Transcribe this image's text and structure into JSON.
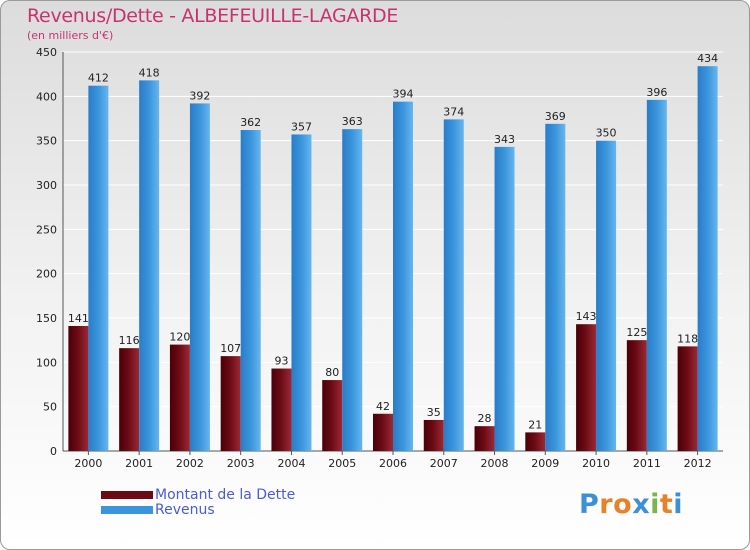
{
  "title": "Revenus/Dette - ALBEFEUILLE-LAGARDE",
  "subtitle": "(en milliers d'€)",
  "logo": {
    "letters": [
      "P",
      "r",
      "o",
      "x",
      "i",
      "t",
      "i"
    ],
    "letter_colors": [
      "#3d8fd6",
      "#e8822a",
      "#e8822a",
      "#3d8fd6",
      "#7ab648",
      "#e8822a",
      "#3d8fd6"
    ]
  },
  "colors": {
    "dette": "#6b0a14",
    "revenus": "#3a95dc",
    "grid": "#ffffff",
    "axis_text": "#222222",
    "title": "#c8336e",
    "legend_text": "#4a5bd8"
  },
  "chart_data": {
    "type": "bar",
    "title": "Revenus/Dette - ALBEFEUILLE-LAGARDE",
    "subtitle": "(en milliers d'€)",
    "xlabel": "",
    "ylabel": "",
    "categories": [
      "2000",
      "2001",
      "2002",
      "2003",
      "2004",
      "2005",
      "2006",
      "2007",
      "2008",
      "2009",
      "2010",
      "2011",
      "2012"
    ],
    "series": [
      {
        "name": "Montant de la Dette",
        "values": [
          141,
          116,
          120,
          107,
          93,
          80,
          42,
          35,
          28,
          21,
          143,
          125,
          118
        ]
      },
      {
        "name": "Revenus",
        "values": [
          412,
          418,
          392,
          362,
          357,
          363,
          394,
          374,
          343,
          369,
          350,
          396,
          434
        ]
      }
    ],
    "ylim": [
      0,
      450
    ],
    "yticks": [
      0,
      50,
      100,
      150,
      200,
      250,
      300,
      350,
      400,
      450
    ],
    "grid": true,
    "legend_position": "bottom-left",
    "data_labels": true
  }
}
